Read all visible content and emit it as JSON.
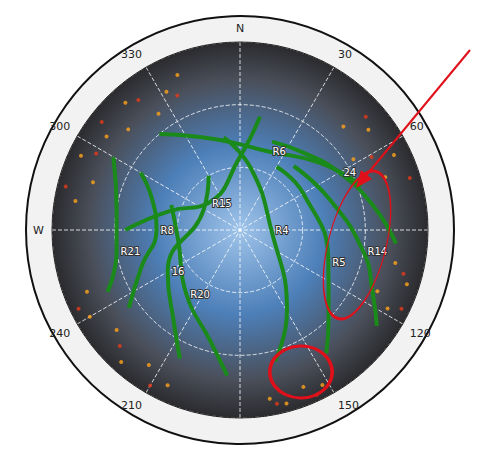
{
  "chart_data": {
    "type": "polar",
    "xlim": [
      0,
      360
    ],
    "xticks": [
      {
        "value": 0,
        "label": "N"
      },
      30,
      60,
      120,
      150,
      210,
      240,
      {
        "value": 270,
        "label": "W"
      },
      300,
      330
    ],
    "ylim": [
      0,
      90
    ],
    "yticks": [
      0,
      30,
      60,
      90
    ],
    "tick_labels": "x",
    "grid": true,
    "series": [
      {
        "type": "line",
        "label": "R6",
        "color": "#1a8a1a",
        "azimuth": [
          320,
          345,
          20,
          50,
          70
        ],
        "elevation": [
          30,
          45,
          50,
          40,
          28
        ]
      },
      {
        "type": "line",
        "label": "24",
        "color": "#1a8a1a",
        "azimuth": [
          20,
          40,
          60,
          80,
          95
        ],
        "elevation": [
          45,
          42,
          35,
          25,
          15
        ]
      },
      {
        "type": "line",
        "label": "R8",
        "color": "#1a8a1a",
        "azimuth": [
          300,
          290,
          270,
          250,
          235
        ],
        "elevation": [
          35,
          45,
          50,
          40,
          25
        ]
      },
      {
        "type": "line",
        "label": "R4",
        "color": "#1a8a1a",
        "azimuth": [
          350,
          10,
          90,
          150,
          165
        ],
        "elevation": [
          45,
          60,
          75,
          45,
          25
        ]
      },
      {
        "type": "line",
        "label": "R20",
        "color": "#1a8a1a",
        "azimuth": [
          290,
          260,
          220,
          195,
          185
        ],
        "elevation": [
          55,
          60,
          50,
          35,
          20
        ]
      },
      {
        "type": "line",
        "label": "16",
        "color": "#1a8a1a",
        "azimuth": [
          330,
          300,
          240,
          215,
          205
        ],
        "elevation": [
          60,
          70,
          50,
          35,
          22
        ]
      },
      {
        "type": "line",
        "label": "R21",
        "color": "#1a8a1a",
        "azimuth": [
          300,
          280,
          260,
          245
        ],
        "elevation": [
          20,
          30,
          30,
          20
        ]
      },
      {
        "type": "line",
        "label": "R5",
        "color": "#1a8a1a",
        "azimuth": [
          30,
          60,
          110,
          135,
          145
        ],
        "elevation": [
          55,
          55,
          45,
          30,
          18
        ]
      },
      {
        "type": "line",
        "label": "R14",
        "color": "#1a8a1a",
        "azimuth": [
          40,
          70,
          100,
          115,
          125
        ],
        "elevation": [
          50,
          45,
          30,
          20,
          10
        ]
      },
      {
        "type": "line",
        "label": "R15",
        "color": "#1a8a1a",
        "azimuth": [
          10,
          0,
          310,
          285,
          270
        ],
        "elevation": [
          35,
          55,
          70,
          55,
          35
        ]
      },
      {
        "type": "scatter",
        "color": "#ffa319",
        "azimuth": [
          305,
          312,
          318,
          325,
          332,
          338,
          45,
          52,
          58,
          64,
          70,
          102,
          108,
          114,
          118,
          205,
          214,
          222,
          231,
          240,
          248,
          152,
          158,
          165,
          170,
          280,
          288,
          295
        ],
        "elevation": [
          12,
          18,
          8,
          22,
          15,
          10,
          20,
          12,
          26,
          8,
          16,
          14,
          6,
          18,
          10,
          8,
          12,
          5,
          14,
          7,
          11,
          6,
          9,
          4,
          8,
          10,
          16,
          6
        ]
      },
      {
        "type": "scatter",
        "color": "#e5391a",
        "azimuth": [
          308,
          322,
          335,
          48,
          61,
          73,
          105,
          116,
          210,
          226,
          244,
          155,
          168,
          284,
          298
        ],
        "elevation": [
          6,
          11,
          19,
          9,
          18,
          5,
          9,
          4,
          4,
          10,
          4,
          3,
          5,
          4,
          12
        ]
      }
    ]
  }
}
